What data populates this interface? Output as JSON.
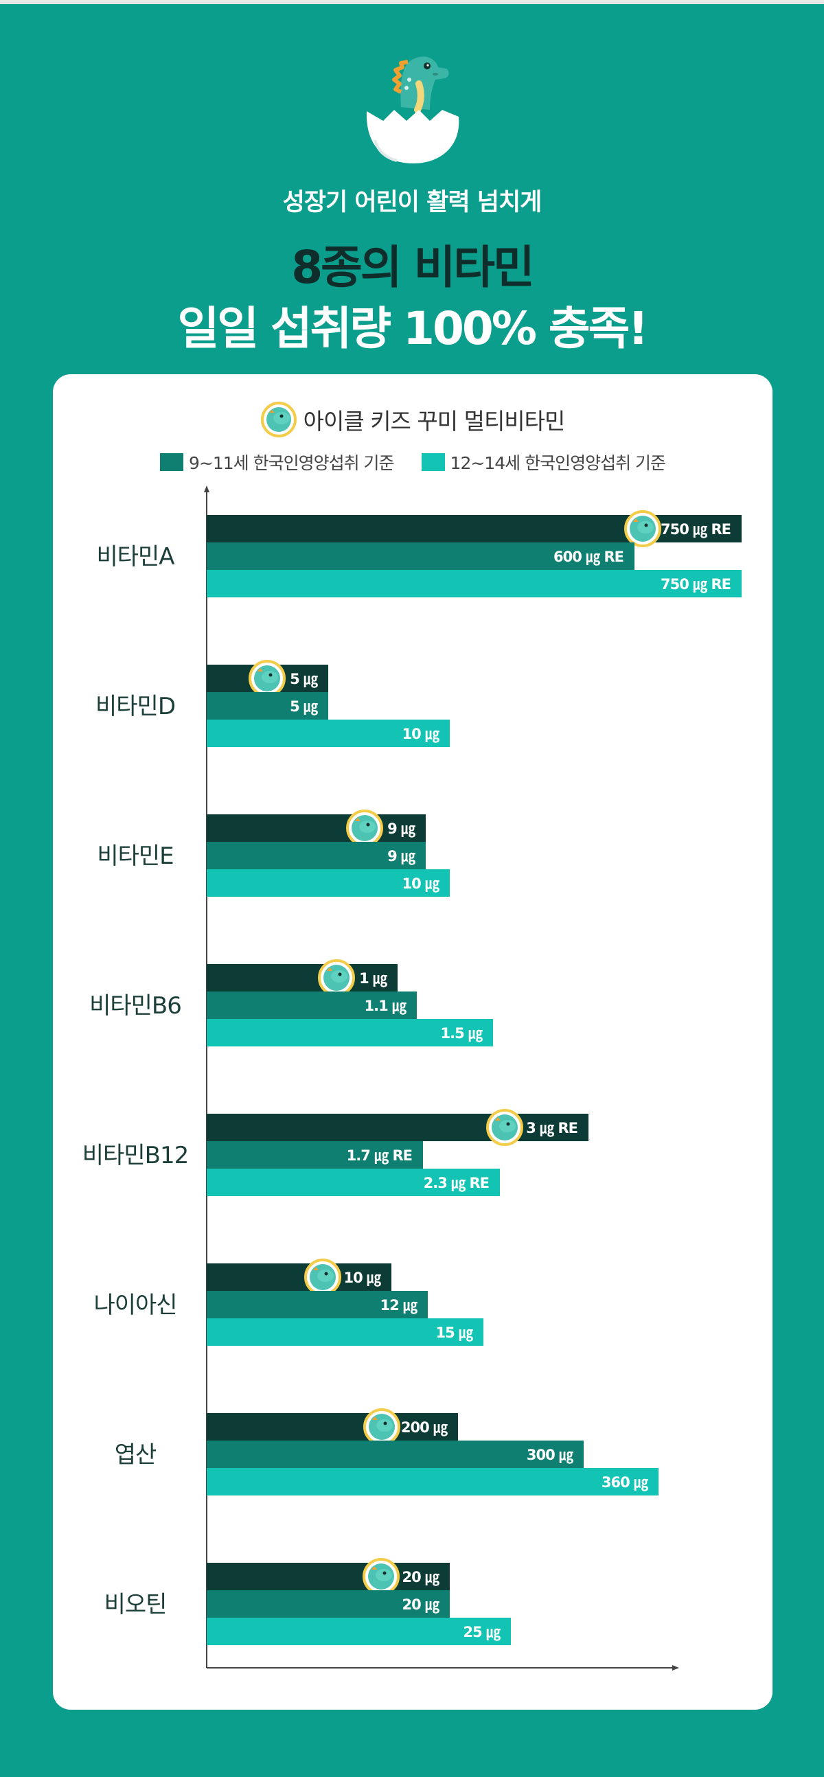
{
  "header": {
    "subtitle": "성장기 어린이 활력 넘치게",
    "title_line1": "8종의 비타민",
    "title_line2": "일일 섭취량 100% 충족!"
  },
  "product": {
    "name": "아이클 키즈 꾸미 멀티비타민"
  },
  "legend": {
    "series2_label": "9~11세 한국인영양섭취 기준",
    "series3_label": "12~14세 한국인영양섭취 기준"
  },
  "colors": {
    "background": "#0b9e8c",
    "product_bar": "#0d3b36",
    "age_9_11": "#0f7f72",
    "age_12_14": "#13c4b4"
  },
  "chart_data": {
    "type": "bar",
    "orientation": "horizontal",
    "categories": [
      "비타민A",
      "비타민D",
      "비타민E",
      "비타민B6",
      "비타민B12",
      "나이아신",
      "엽산",
      "비오틴"
    ],
    "series": [
      {
        "name": "아이클 키즈 꾸미 멀티비타민",
        "values": [
          750,
          5,
          9,
          1,
          3,
          10,
          200,
          20
        ],
        "labels": [
          "750 ㎍ RE",
          "5 ㎍",
          "9 ㎍",
          "1 ㎍",
          "3 ㎍ RE",
          "10 ㎍",
          "200 ㎍",
          "20 ㎍"
        ]
      },
      {
        "name": "9~11세 한국인영양섭취 기준",
        "values": [
          600,
          5,
          9,
          1.1,
          1.7,
          12,
          300,
          20
        ],
        "labels": [
          "600 ㎍ RE",
          "5 ㎍",
          "9 ㎍",
          "1.1 ㎍",
          "1.7 ㎍ RE",
          "12 ㎍",
          "300 ㎍",
          "20 ㎍"
        ]
      },
      {
        "name": "12~14세 한국인영양섭취 기준",
        "values": [
          750,
          10,
          10,
          1.5,
          2.3,
          15,
          360,
          25
        ],
        "labels": [
          "750 ㎍ RE",
          "10 ㎍",
          "10 ㎍",
          "1.5 ㎍",
          "2.3 ㎍ RE",
          "15 ㎍",
          "360 ㎍",
          "25 ㎍"
        ]
      }
    ],
    "scale_note": "each vitamin is scaled independently",
    "category_scale_max": [
      750,
      22,
      22,
      2.8,
      4.2,
      29,
      426,
      44
    ],
    "grid": false,
    "legend_position": "top"
  }
}
